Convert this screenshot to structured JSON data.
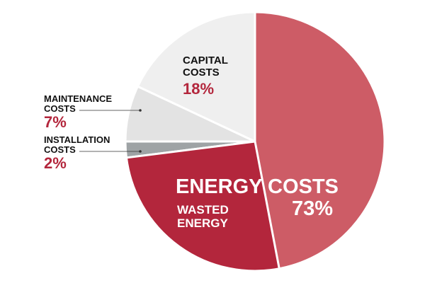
{
  "chart_data": {
    "type": "pie",
    "categories": [
      "ENERGY COSTS",
      "INSTALLATION COSTS",
      "MAINTENANCE COSTS",
      "CAPITAL COSTS"
    ],
    "values": [
      73,
      2,
      7,
      18
    ],
    "value_labels": [
      "73%",
      "2%",
      "7%",
      "18%"
    ],
    "colors": [
      "#cd5c66",
      "#9ea3a5",
      "#e3e3e3",
      "#efefef"
    ],
    "wasted": {
      "name": "WASTED ENERGY",
      "value": 26,
      "color": "#b3263c"
    }
  }
}
